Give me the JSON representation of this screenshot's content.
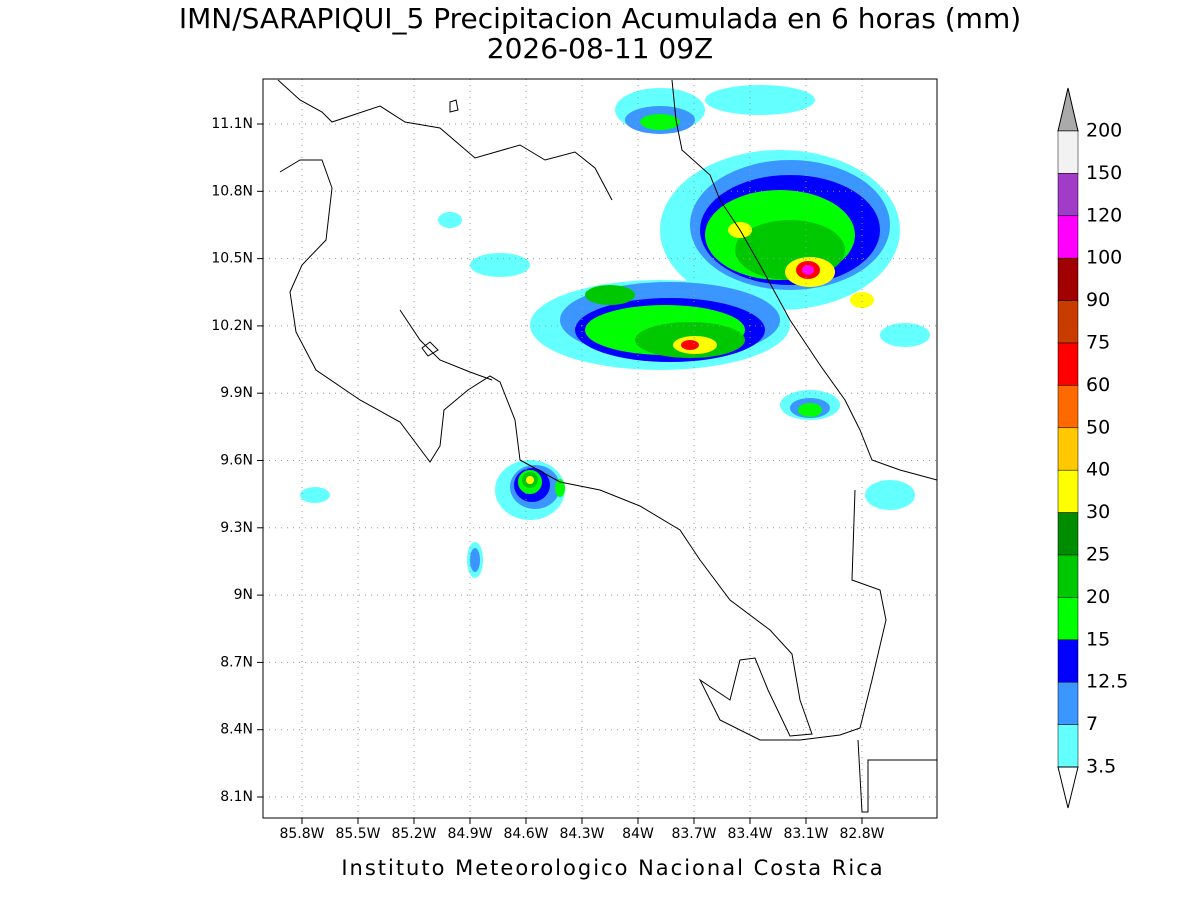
{
  "title": "IMN/SARAPIQUI_5 Precipitacion Acumulada en 6 horas (mm)",
  "subtitle": "2026-08-11 09Z",
  "map": {
    "lon_ticks": [
      "85.8W",
      "85.5W",
      "85.2W",
      "84.9W",
      "84.6W",
      "84.3W",
      "84W",
      "83.7W",
      "83.4W",
      "83.1W",
      "82.8W"
    ],
    "lat_ticks": [
      "11.1N",
      "10.8N",
      "10.5N",
      "10.2N",
      "9.9N",
      "9.6N",
      "9.3N",
      "9N",
      "8.7N",
      "8.4N",
      "8.1N"
    ]
  },
  "colorbar": {
    "levels": [
      200,
      150,
      120,
      100,
      90,
      75,
      60,
      50,
      40,
      30,
      25,
      20,
      15,
      12.5,
      7,
      3.5
    ],
    "colors": [
      "#f2f2f2",
      "#a03cc8",
      "#ff00ff",
      "#a00000",
      "#c83c00",
      "#ff0000",
      "#ff6a00",
      "#ffc800",
      "#ffff00",
      "#008c00",
      "#00c800",
      "#00ff00",
      "#0000ff",
      "#3c96ff",
      "#64ffff"
    ],
    "over_color": "#aaaaaa",
    "under_color": "#ffffff"
  },
  "footer": "Instituto Meteorologico Nacional Costa Rica"
}
